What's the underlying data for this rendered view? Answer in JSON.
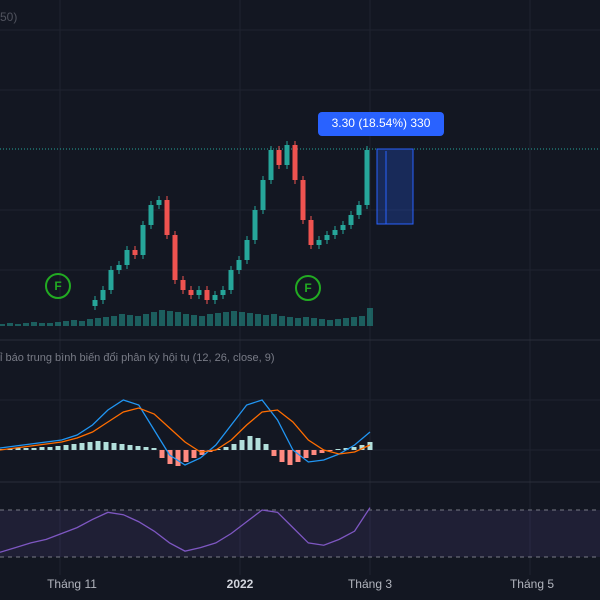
{
  "header_fragment": "50)",
  "price_pane": {
    "first_open": 12,
    "closes": [
      15,
      20,
      30,
      32.5,
      40,
      37.5,
      52.5,
      62.5,
      65,
      47.5,
      25,
      20,
      17.5,
      20,
      15,
      17.5,
      20,
      30,
      35,
      45,
      60,
      75,
      90,
      82.5,
      92.5,
      75,
      55,
      42.5,
      45,
      47.5,
      50,
      52.5,
      57.5,
      62.5,
      90
    ],
    "markers": [
      "F",
      "F"
    ]
  },
  "volume": [
    2,
    3,
    2,
    3,
    4,
    3,
    3,
    4,
    5,
    6,
    5,
    7,
    8,
    9,
    10,
    12,
    11,
    10,
    12,
    14,
    16,
    15,
    14,
    12,
    11,
    10,
    12,
    13,
    14,
    15,
    14,
    13,
    12,
    11,
    12,
    10,
    9,
    8,
    9,
    8,
    7,
    6,
    7,
    8,
    9,
    10,
    18
  ],
  "measure_label": "3.30 (18.54%) 330",
  "macd_pane": {
    "title": "ỉ báo trung bình biến đổi phân kỳ hội tụ (12, 26, close, 9)",
    "histogram": [
      1,
      1,
      2,
      2,
      2,
      3,
      3,
      4,
      5,
      6,
      7,
      8,
      9,
      8,
      7,
      6,
      5,
      4,
      3,
      2,
      -8,
      -14,
      -16,
      -12,
      -8,
      -5,
      -2,
      1,
      3,
      6,
      10,
      14,
      12,
      6,
      -6,
      -12,
      -15,
      -12,
      -8,
      -5,
      -3,
      -1,
      1,
      2,
      3,
      5,
      8
    ],
    "macd": [
      2,
      4,
      6,
      8,
      10,
      15,
      25,
      40,
      50,
      45,
      20,
      -5,
      -15,
      -8,
      5,
      25,
      45,
      50,
      30,
      0,
      -12,
      -10,
      -4,
      5,
      18
    ],
    "signal": [
      0,
      2,
      4,
      6,
      8,
      12,
      18,
      28,
      38,
      42,
      36,
      22,
      8,
      -2,
      0,
      10,
      25,
      38,
      40,
      28,
      10,
      0,
      -4,
      -2,
      5
    ]
  },
  "rsi_pane": {
    "values": [
      34,
      38,
      42,
      45,
      50,
      55,
      62,
      68,
      66,
      60,
      52,
      42,
      35,
      38,
      42,
      50,
      60,
      70,
      68,
      55,
      42,
      40,
      45,
      52,
      72
    ],
    "bands": [
      70,
      30
    ]
  },
  "x_axis": [
    "Tháng 11",
    "2022",
    "Tháng 3",
    "Tháng 5"
  ]
}
